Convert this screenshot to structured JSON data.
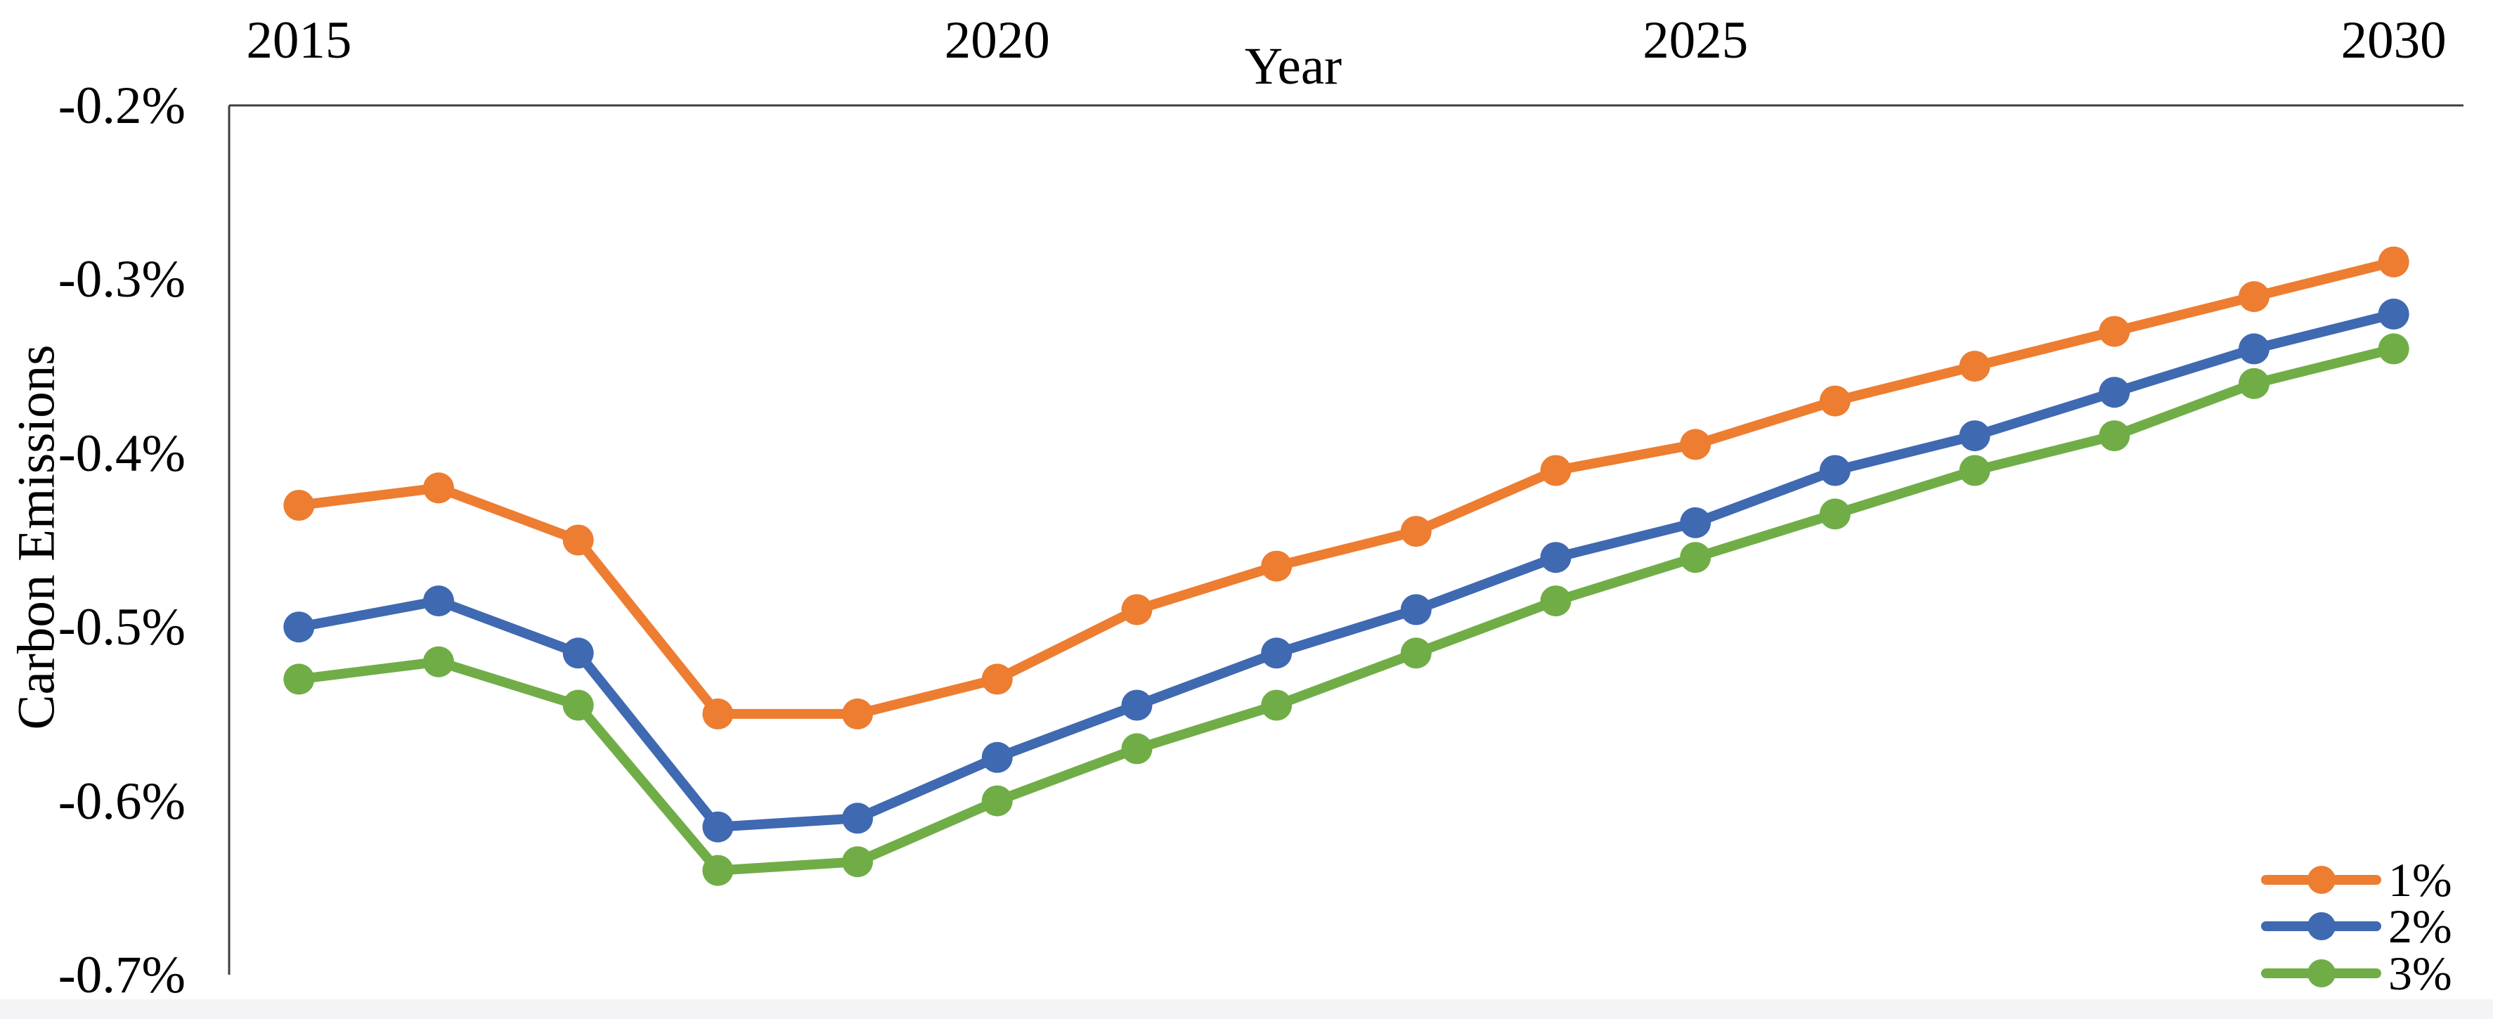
{
  "figure": {
    "background": "#ffffff",
    "footer_strip_color": "#f4f4f6",
    "axis_color": "#3f3f3f"
  },
  "chart_data": {
    "type": "line",
    "title": "",
    "xlabel": "Year",
    "ylabel": "Carbon Emissions",
    "categories": [
      2015,
      2016,
      2017,
      2018,
      2019,
      2020,
      2021,
      2022,
      2023,
      2024,
      2025,
      2026,
      2027,
      2028,
      2029,
      2030
    ],
    "x_tick_labels": [
      "2015",
      "2020",
      "2025",
      "2030"
    ],
    "x_tick_indices": [
      0,
      5,
      10,
      15
    ],
    "y_ticks": [
      {
        "value": -0.2,
        "label": "-0.2%"
      },
      {
        "value": -0.3,
        "label": "-0.3%"
      },
      {
        "value": -0.4,
        "label": "-0.4%"
      },
      {
        "value": -0.5,
        "label": "-0.5%"
      },
      {
        "value": -0.6,
        "label": "-0.6%"
      },
      {
        "value": -0.7,
        "label": "-0.7%"
      }
    ],
    "ylim": [
      -0.7,
      -0.2
    ],
    "y_unit": "percent",
    "grid": false,
    "legend_position": "bottom-right-inside",
    "series": [
      {
        "name": "1%",
        "color": "#ED7D31",
        "values": [
          -0.43,
          -0.42,
          -0.45,
          -0.55,
          -0.55,
          -0.53,
          -0.49,
          -0.465,
          -0.445,
          -0.41,
          -0.395,
          -0.37,
          -0.35,
          -0.33,
          -0.31,
          -0.29
        ]
      },
      {
        "name": "2%",
        "color": "#3F69B1",
        "values": [
          -0.5,
          -0.485,
          -0.515,
          -0.615,
          -0.61,
          -0.575,
          -0.545,
          -0.515,
          -0.49,
          -0.46,
          -0.44,
          -0.41,
          -0.39,
          -0.365,
          -0.34,
          -0.32
        ]
      },
      {
        "name": "3%",
        "color": "#70AD47",
        "values": [
          -0.53,
          -0.52,
          -0.545,
          -0.64,
          -0.635,
          -0.6,
          -0.57,
          -0.545,
          -0.515,
          -0.485,
          -0.46,
          -0.435,
          -0.41,
          -0.39,
          -0.36,
          -0.34
        ]
      }
    ]
  }
}
